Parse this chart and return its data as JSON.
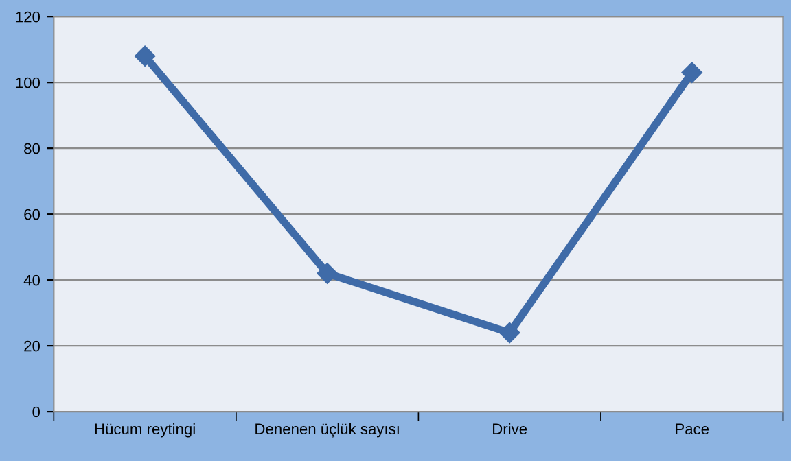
{
  "chart_data": {
    "type": "line",
    "categories": [
      "Hücum reytingi",
      "Denenen üçlük sayısı",
      "Drive",
      "Pace"
    ],
    "series": [
      {
        "color": "#3f6ba8",
        "values": [
          108,
          42,
          24,
          103
        ]
      }
    ],
    "ylim": [
      0,
      120
    ],
    "yticks": [
      0,
      20,
      40,
      60,
      80,
      100,
      120
    ],
    "grid": "y",
    "marker": "diamond",
    "line_style": "solid"
  }
}
